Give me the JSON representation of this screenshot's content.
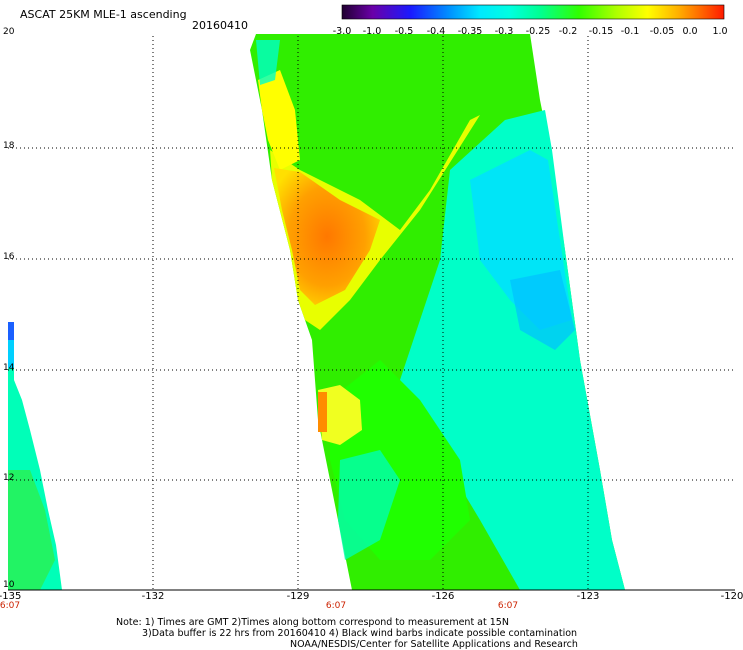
{
  "header": {
    "title": "ASCAT 25KM MLE-1 ascending",
    "date": "20160410"
  },
  "colorbar": {
    "ticks": [
      "-3.0",
      "-1.0",
      "-0.5",
      "-0.4",
      "-0.35",
      "-0.3",
      "-0.25",
      "-0.2",
      "-0.15",
      "-0.1",
      "-0.05",
      "0.0",
      "1.0"
    ],
    "colors": [
      "#2a0040",
      "#7a00b0",
      "#2020ff",
      "#0090ff",
      "#00d8ff",
      "#00ffd8",
      "#00ff80",
      "#20ff00",
      "#a0ff00",
      "#ffff00",
      "#ffb000",
      "#ff6000",
      "#ff1a00"
    ]
  },
  "axes": {
    "y_ticks": [
      "20",
      "18",
      "16",
      "14",
      "12",
      "10"
    ],
    "x_ticks": [
      "-135",
      "-132",
      "-129",
      "-126",
      "-123",
      "-120"
    ],
    "time_labels": [
      "6:07",
      "6:07",
      "6:07"
    ]
  },
  "notes": {
    "line1": "Note: 1) Times are GMT 2)Times along bottom correspond to measurement at 15N",
    "line2": "3)Data buffer is 22 hrs from 20160410 4) Black wind barbs indicate possible contamination",
    "line3": "NOAA/NESDIS/Center for Satellite Applications and Research"
  },
  "legend_colors": {
    "orange": "#ff8c00",
    "yellow": "#ffff00",
    "green": "#30ee00",
    "cyan": "#00ffd8",
    "blue": "#00b0ff"
  }
}
